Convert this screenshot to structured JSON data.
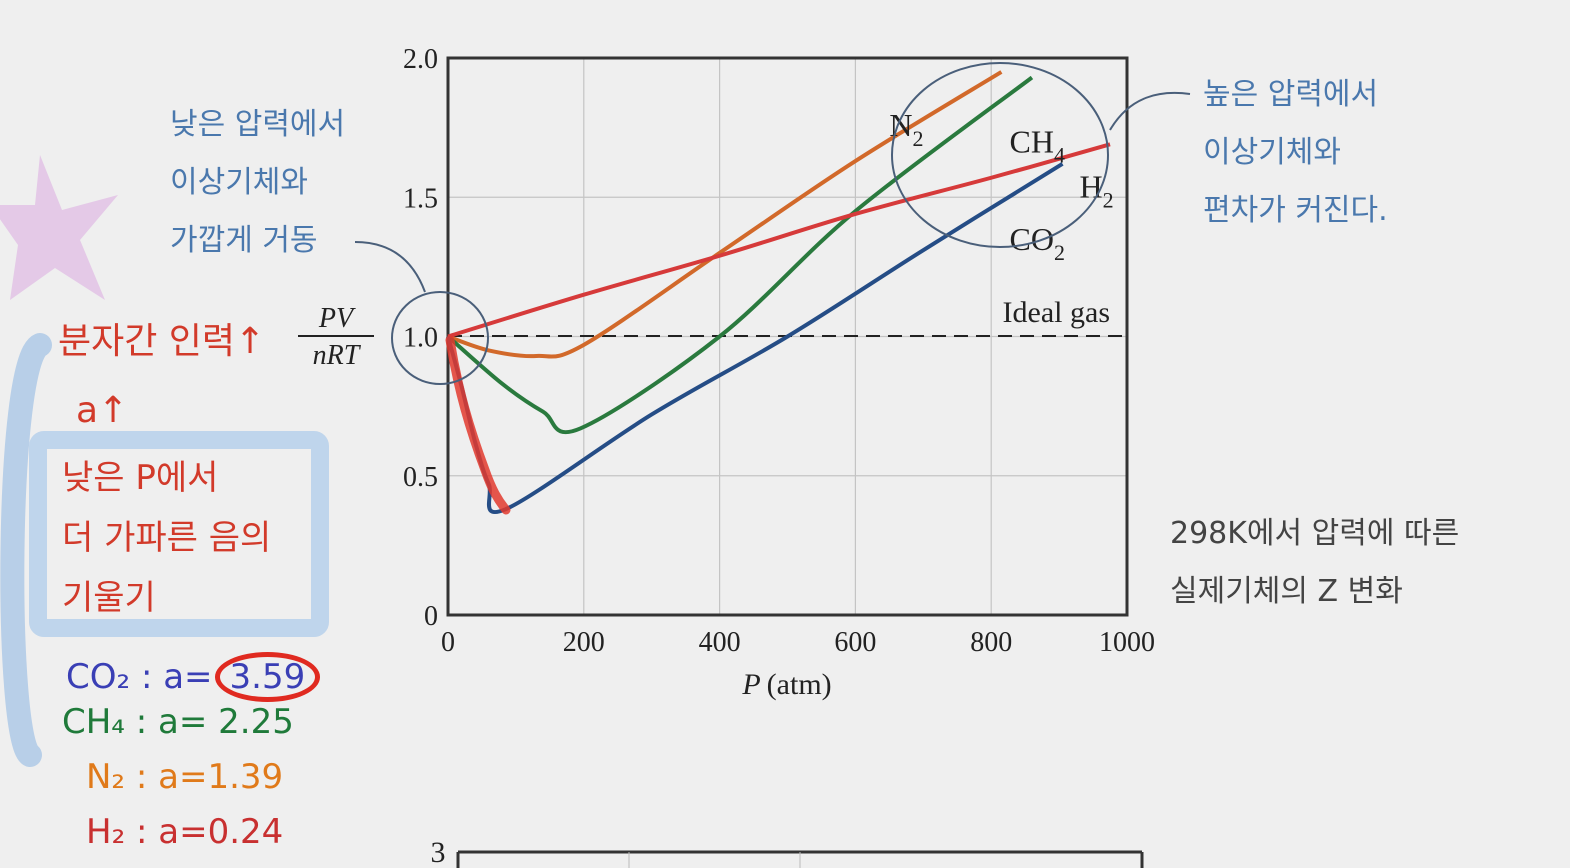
{
  "chart_data": {
    "type": "line",
    "xlabel_italic": "P",
    "xlabel_unit": "(atm)",
    "ylabel_num": "PV",
    "ylabel_den": "nRT",
    "xlim": [
      0,
      1000
    ],
    "ylim": [
      0,
      2.0
    ],
    "x_ticks": [
      "0",
      "200",
      "400",
      "600",
      "800",
      "1000"
    ],
    "y_ticks": [
      "0",
      "0.5",
      "1.0",
      "1.5",
      "2.0"
    ],
    "grid": true,
    "ideal_label": "Ideal gas",
    "series": [
      {
        "name": "N",
        "sub": "2",
        "color": "#d2692a",
        "points": [
          [
            0,
            1.0
          ],
          [
            60,
            0.95
          ],
          [
            130,
            0.93
          ],
          [
            200,
            0.97
          ],
          [
            400,
            1.3
          ],
          [
            600,
            1.63
          ],
          [
            815,
            1.95
          ]
        ]
      },
      {
        "name": "CH",
        "sub": "4",
        "color": "#2a7a3e",
        "points": [
          [
            0,
            1.0
          ],
          [
            80,
            0.83
          ],
          [
            140,
            0.73
          ],
          [
            195,
            0.67
          ],
          [
            400,
            1.0
          ],
          [
            600,
            1.45
          ],
          [
            860,
            1.93
          ]
        ]
      },
      {
        "name": "H",
        "sub": "2",
        "color": "#d63a3a",
        "points": [
          [
            0,
            1.0
          ],
          [
            200,
            1.15
          ],
          [
            400,
            1.29
          ],
          [
            600,
            1.44
          ],
          [
            800,
            1.57
          ],
          [
            975,
            1.69
          ]
        ]
      },
      {
        "name": "CO",
        "sub": "2",
        "color": "#254d86",
        "points": [
          [
            0,
            1.0
          ],
          [
            20,
            0.82
          ],
          [
            40,
            0.62
          ],
          [
            60,
            0.47
          ],
          [
            85,
            0.38
          ],
          [
            300,
            0.72
          ],
          [
            500,
            1.0
          ],
          [
            700,
            1.31
          ],
          [
            905,
            1.62
          ]
        ]
      }
    ]
  },
  "notes": {
    "low_pressure": [
      "낮은 압력에서",
      "이상기체와",
      "가깝게 거동"
    ],
    "high_pressure": [
      "높은 압력에서",
      "이상기체와",
      "편차가 커진다."
    ],
    "caption": [
      "298K에서 압력에 따른",
      "실제기체의 Z 변화"
    ]
  },
  "handwriting": {
    "force": "분자간 인력↑",
    "a_up": "a↑",
    "low_p": [
      "낮은 P에서",
      "더 가파른 음의",
      "기울기"
    ],
    "co2": {
      "label": "CO₂ : a=",
      "value": "3.59",
      "color": "#3a3fb5"
    },
    "ch4": {
      "label": "CH₄ : a= 2.25",
      "color": "#1f7a3a"
    },
    "n2": {
      "label": "N₂ : a=1.39",
      "color": "#e07a1a"
    },
    "h2": {
      "label": "H₂ : a=0.24",
      "color": "#c83030"
    }
  },
  "next_chart_tick": "3"
}
